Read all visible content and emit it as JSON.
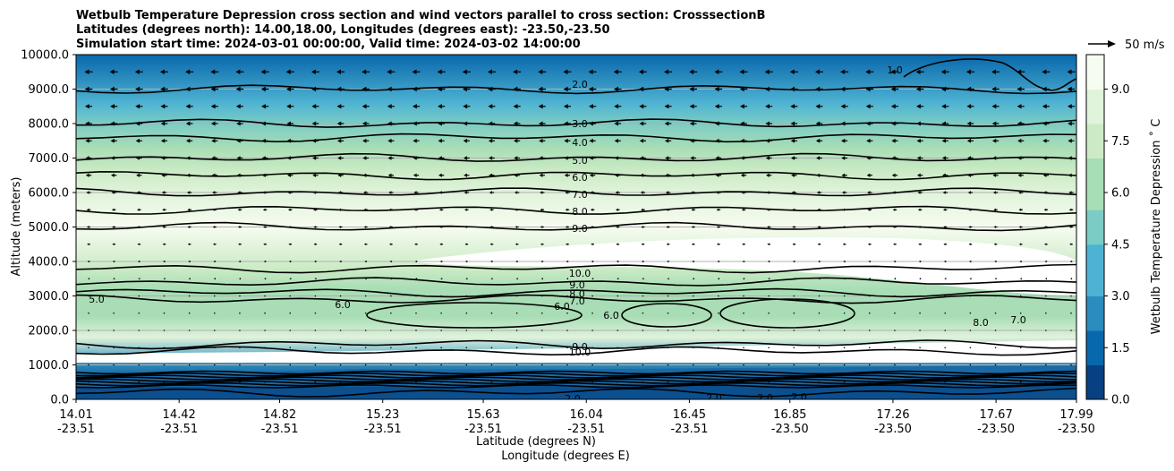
{
  "chart_data": {
    "type": "contour",
    "title_lines": [
      "Wetbulb Temperature Depression cross section and wind vectors parallel to cross section: CrosssectionB",
      "Latitudes (degrees north): 14.00,18.00, Longitudes (degrees east): -23.50,-23.50",
      "Simulation start time: 2024-03-01 00:00:00, Valid time: 2024-03-02 14:00:00"
    ],
    "ylabel": "Altitude (meters)",
    "xlabel_line1": "Latitude (degrees N)",
    "xlabel_line2": "Longitude (degrees E)",
    "ylim": [
      0,
      10000
    ],
    "y_ticks": [
      "0.0",
      "1000.0",
      "2000.0",
      "3000.0",
      "4000.0",
      "5000.0",
      "6000.0",
      "7000.0",
      "8000.0",
      "9000.0",
      "10000.0"
    ],
    "x_ticks": [
      {
        "lat": "14.01",
        "lon": "-23.51"
      },
      {
        "lat": "14.42",
        "lon": "-23.51"
      },
      {
        "lat": "14.82",
        "lon": "-23.51"
      },
      {
        "lat": "15.23",
        "lon": "-23.51"
      },
      {
        "lat": "15.63",
        "lon": "-23.51"
      },
      {
        "lat": "16.04",
        "lon": "-23.51"
      },
      {
        "lat": "16.45",
        "lon": "-23.51"
      },
      {
        "lat": "16.85",
        "lon": "-23.50"
      },
      {
        "lat": "17.26",
        "lon": "-23.50"
      },
      {
        "lat": "17.67",
        "lon": "-23.50"
      },
      {
        "lat": "17.99",
        "lon": "-23.50"
      }
    ],
    "colorbar": {
      "label": "Wetbulb Temperature Depression $^\\circ$C",
      "label_display": "Wetbulb Temperature Depression ˚ C",
      "range": [
        0,
        10
      ],
      "tick_labels": [
        "0.0",
        "1.5",
        "3.0",
        "4.5",
        "6.0",
        "7.5",
        "9.0"
      ],
      "colormap": "GnBu_r",
      "colors": [
        "#084081",
        "#0868ac",
        "#2b8cbe",
        "#4eb3d3",
        "#7bccc4",
        "#a8ddb5",
        "#ccebc5",
        "#e0f3db",
        "#f7fcf0"
      ]
    },
    "quiver_key": "50 m/s",
    "contour_levels": [
      {
        "value": 2.0,
        "altitude_m": 9000
      },
      {
        "value": 3.0,
        "altitude_m": 8000
      },
      {
        "value": 4.0,
        "altitude_m": 7600
      },
      {
        "value": 5.0,
        "altitude_m": 7000
      },
      {
        "value": 6.0,
        "altitude_m": 6500
      },
      {
        "value": 7.0,
        "altitude_m": 6000
      },
      {
        "value": 8.0,
        "altitude_m": 5500
      },
      {
        "value": 9.0,
        "altitude_m": 5000
      },
      {
        "value": 10.0,
        "altitude_m": 3800
      },
      {
        "value": 9.0,
        "altitude_m": 3400
      },
      {
        "value": 8.0,
        "altitude_m": 3100
      },
      {
        "value": 7.0,
        "altitude_m": 2900
      },
      {
        "value": 9.0,
        "altitude_m": 1600
      },
      {
        "value": 10.0,
        "altitude_m": 1400
      },
      {
        "value": 2.0,
        "altitude_m": 200
      }
    ],
    "inline_labels": [
      "2.0",
      "3.0",
      "4.0",
      "5.0",
      "6.0",
      "7.0",
      "8.0",
      "9.0",
      "10.0",
      "9.0",
      "8.0",
      "7.0",
      "9.0",
      "10.0",
      "6.0",
      "6.0",
      "5.0",
      "6.0",
      "8.0",
      "7.0",
      "1.0",
      "2.0",
      "2.0",
      "2.0",
      "2.0"
    ],
    "wind_rows": [
      {
        "altitude_m": 9500,
        "u": -1.0
      },
      {
        "altitude_m": 9000,
        "u": -0.95
      },
      {
        "altitude_m": 8500,
        "u": -0.9
      },
      {
        "altitude_m": 8000,
        "u": -0.85
      },
      {
        "altitude_m": 7500,
        "u": -0.8
      },
      {
        "altitude_m": 7000,
        "u": -0.75
      },
      {
        "altitude_m": 6500,
        "u": -0.7
      },
      {
        "altitude_m": 6000,
        "u": -0.6
      },
      {
        "altitude_m": 5500,
        "u": -0.5
      },
      {
        "altitude_m": 5000,
        "u": -0.45
      },
      {
        "altitude_m": 4500,
        "u": -0.4
      },
      {
        "altitude_m": 4000,
        "u": -0.3
      },
      {
        "altitude_m": 3500,
        "u": -0.2
      },
      {
        "altitude_m": 3000,
        "u": -0.15
      },
      {
        "altitude_m": 2500,
        "u": -0.1
      },
      {
        "altitude_m": 2000,
        "u": -0.1
      },
      {
        "altitude_m": 1500,
        "u": -0.05
      },
      {
        "altitude_m": 1000,
        "u": 0.1
      },
      {
        "altitude_m": 500,
        "u": 0.05
      }
    ]
  }
}
